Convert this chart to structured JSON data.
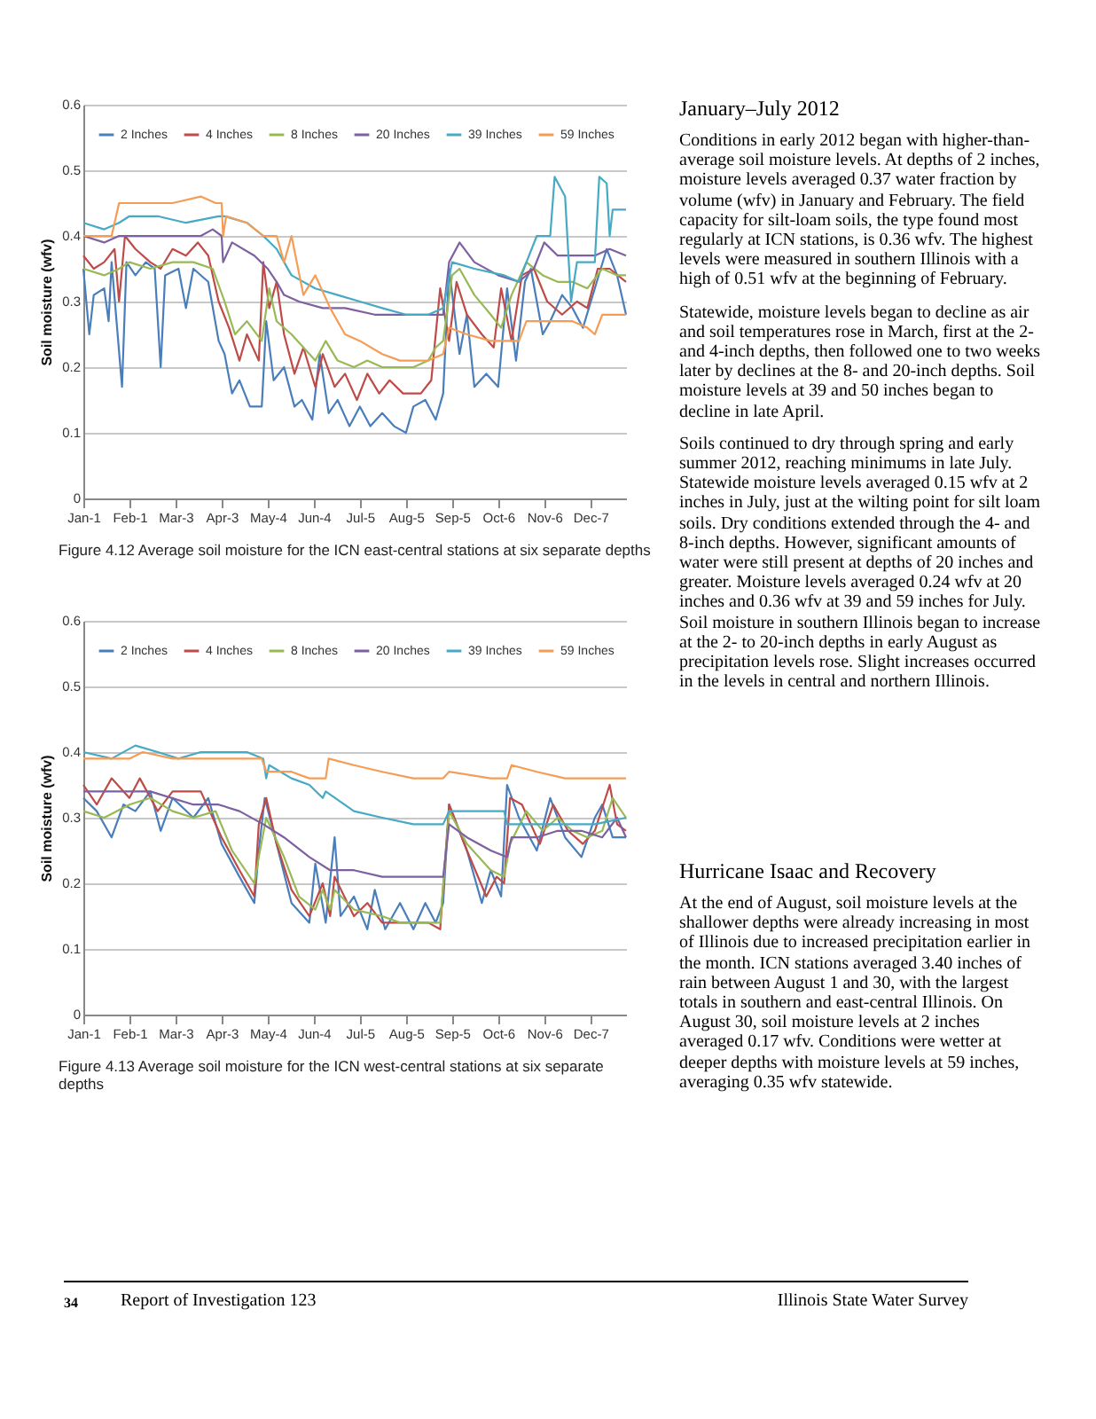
{
  "chart_data": [
    {
      "type": "line",
      "ylabel": "Soil moisture (wfv)",
      "xlim": [
        "--01-01",
        "--12-31"
      ],
      "ylim": [
        0,
        0.6
      ],
      "yticks": [
        0,
        0.1,
        0.2,
        0.3,
        0.4,
        0.5,
        0.6
      ],
      "xticks": [
        {
          "value": "--01-01",
          "label": "Jan-1"
        },
        {
          "value": "--02-01",
          "label": "Feb-1"
        },
        {
          "value": "--03-03",
          "label": "Mar-3"
        },
        {
          "value": "--04-03",
          "label": "Apr-3"
        },
        {
          "value": "--05-04",
          "label": "May-4"
        },
        {
          "value": "--06-04",
          "label": "Jun-4"
        },
        {
          "value": "--07-05",
          "label": "Jul-5"
        },
        {
          "value": "--08-05",
          "label": "Aug-5"
        },
        {
          "value": "--09-05",
          "label": "Sep-5"
        },
        {
          "value": "--10-06",
          "label": "Oct-6"
        },
        {
          "value": "--11-06",
          "label": "Nov-6"
        },
        {
          "value": "--12-07",
          "label": "Dec-7"
        }
      ],
      "grid": "y",
      "legend": "top",
      "line_style": "solid",
      "marker": "none",
      "annotations": [
        "Figure 4.12 Average soil moisture for the ICN east-central stations at six separate depths"
      ],
      "series": [
        {
          "name": "2 Inches",
          "color": "#4a7ebb",
          "x": [
            "--01-01",
            "--01-05",
            "--01-08",
            "--01-15",
            "--01-18",
            "--01-20",
            "--01-27",
            "--01-30",
            "--02-05",
            "--02-12",
            "--02-18",
            "--02-22",
            "--02-25",
            "--03-05",
            "--03-10",
            "--03-15",
            "--03-25",
            "--04-01",
            "--04-05",
            "--04-10",
            "--04-15",
            "--04-22",
            "--04-30",
            "--05-03",
            "--05-08",
            "--05-15",
            "--05-22",
            "--05-27",
            "--06-03",
            "--06-08",
            "--06-14",
            "--06-20",
            "--06-28",
            "--07-05",
            "--07-12",
            "--07-20",
            "--07-28",
            "--08-05",
            "--08-10",
            "--08-18",
            "--08-25",
            "--08-30",
            "--09-03",
            "--09-10",
            "--09-15",
            "--09-20",
            "--09-28",
            "--10-06",
            "--10-12",
            "--10-18",
            "--10-24",
            "--10-28",
            "--11-05",
            "--11-10",
            "--11-18",
            "--11-25",
            "--12-02",
            "--12-10",
            "--12-18",
            "--12-25",
            "--12-31"
          ],
          "values": [
            0.35,
            0.25,
            0.31,
            0.32,
            0.27,
            0.36,
            0.17,
            0.36,
            0.34,
            0.36,
            0.35,
            0.2,
            0.34,
            0.35,
            0.29,
            0.35,
            0.33,
            0.24,
            0.22,
            0.16,
            0.18,
            0.14,
            0.14,
            0.27,
            0.18,
            0.2,
            0.14,
            0.15,
            0.12,
            0.22,
            0.13,
            0.15,
            0.11,
            0.14,
            0.11,
            0.13,
            0.11,
            0.1,
            0.14,
            0.15,
            0.12,
            0.16,
            0.35,
            0.22,
            0.28,
            0.17,
            0.19,
            0.17,
            0.32,
            0.21,
            0.33,
            0.35,
            0.25,
            0.27,
            0.31,
            0.29,
            0.26,
            0.32,
            0.38,
            0.34,
            0.28
          ]
        },
        {
          "name": "4 Inches",
          "color": "#be4b48",
          "x": [
            "--01-01",
            "--01-08",
            "--01-15",
            "--01-22",
            "--01-25",
            "--01-29",
            "--02-05",
            "--02-15",
            "--02-22",
            "--03-01",
            "--03-10",
            "--03-18",
            "--03-25",
            "--04-01",
            "--04-08",
            "--04-15",
            "--04-20",
            "--04-28",
            "--05-01",
            "--05-05",
            "--05-10",
            "--05-15",
            "--05-22",
            "--05-28",
            "--06-05",
            "--06-10",
            "--06-18",
            "--06-25",
            "--07-03",
            "--07-10",
            "--07-18",
            "--07-25",
            "--08-03",
            "--08-15",
            "--08-22",
            "--08-28",
            "--09-03",
            "--09-08",
            "--09-15",
            "--09-25",
            "--10-03",
            "--10-08",
            "--10-15",
            "--10-22",
            "--10-30",
            "--11-08",
            "--11-18",
            "--11-28",
            "--12-05",
            "--12-12",
            "--12-20",
            "--12-31"
          ],
          "values": [
            0.37,
            0.35,
            0.36,
            0.38,
            0.3,
            0.4,
            0.38,
            0.36,
            0.35,
            0.38,
            0.37,
            0.39,
            0.37,
            0.3,
            0.26,
            0.21,
            0.25,
            0.21,
            0.36,
            0.29,
            0.33,
            0.25,
            0.19,
            0.23,
            0.17,
            0.22,
            0.17,
            0.19,
            0.15,
            0.19,
            0.16,
            0.18,
            0.16,
            0.16,
            0.18,
            0.32,
            0.24,
            0.33,
            0.28,
            0.25,
            0.23,
            0.32,
            0.24,
            0.34,
            0.35,
            0.3,
            0.28,
            0.3,
            0.29,
            0.35,
            0.35,
            0.33
          ]
        },
        {
          "name": "8 Inches",
          "color": "#98b954",
          "x": [
            "--01-01",
            "--01-15",
            "--01-25",
            "--02-01",
            "--02-15",
            "--03-01",
            "--03-15",
            "--03-28",
            "--04-05",
            "--04-12",
            "--04-20",
            "--04-30",
            "--05-05",
            "--05-10",
            "--05-20",
            "--05-28",
            "--06-05",
            "--06-12",
            "--06-20",
            "--07-01",
            "--07-10",
            "--07-20",
            "--08-01",
            "--08-10",
            "--08-20",
            "--08-25",
            "--08-30",
            "--09-05",
            "--09-10",
            "--09-20",
            "--10-01",
            "--10-08",
            "--10-15",
            "--10-25",
            "--11-05",
            "--11-15",
            "--11-25",
            "--12-05",
            "--12-15",
            "--12-25",
            "--12-31"
          ],
          "values": [
            0.35,
            0.34,
            0.35,
            0.36,
            0.35,
            0.36,
            0.36,
            0.35,
            0.3,
            0.25,
            0.27,
            0.24,
            0.32,
            0.27,
            0.25,
            0.23,
            0.21,
            0.24,
            0.21,
            0.2,
            0.21,
            0.2,
            0.2,
            0.2,
            0.21,
            0.23,
            0.24,
            0.34,
            0.35,
            0.31,
            0.28,
            0.26,
            0.31,
            0.36,
            0.34,
            0.33,
            0.33,
            0.32,
            0.35,
            0.34,
            0.34
          ]
        },
        {
          "name": "20 Inches",
          "color": "#7d60a0",
          "x": [
            "--01-01",
            "--01-15",
            "--01-25",
            "--02-01",
            "--02-15",
            "--03-01",
            "--03-20",
            "--03-28",
            "--04-03",
            "--04-04",
            "--04-10",
            "--04-25",
            "--05-04",
            "--05-10",
            "--05-15",
            "--05-25",
            "--06-10",
            "--06-25",
            "--07-15",
            "--08-01",
            "--08-20",
            "--08-30",
            "--09-03",
            "--09-10",
            "--09-20",
            "--10-06",
            "--10-20",
            "--10-30",
            "--11-06",
            "--11-15",
            "--11-30",
            "--12-10",
            "--12-20",
            "--12-31"
          ],
          "values": [
            0.4,
            0.39,
            0.4,
            0.4,
            0.4,
            0.4,
            0.4,
            0.41,
            0.4,
            0.36,
            0.39,
            0.37,
            0.35,
            0.33,
            0.31,
            0.3,
            0.29,
            0.29,
            0.28,
            0.28,
            0.28,
            0.28,
            0.36,
            0.39,
            0.36,
            0.34,
            0.33,
            0.35,
            0.39,
            0.37,
            0.37,
            0.37,
            0.38,
            0.37
          ]
        },
        {
          "name": "39 Inches",
          "color": "#46aac5",
          "x": [
            "--01-01",
            "--01-15",
            "--01-25",
            "--02-01",
            "--02-20",
            "--03-10",
            "--04-01",
            "--04-05",
            "--04-20",
            "--05-01",
            "--05-10",
            "--05-20",
            "--06-05",
            "--06-20",
            "--07-05",
            "--07-20",
            "--08-05",
            "--08-20",
            "--08-30",
            "--09-05",
            "--09-20",
            "--10-10",
            "--10-20",
            "--10-25",
            "--11-01",
            "--11-10",
            "--11-13",
            "--11-20",
            "--11-24",
            "--11-28",
            "--12-10",
            "--12-13",
            "--12-18",
            "--12-20",
            "--12-22",
            "--12-31"
          ],
          "values": [
            0.42,
            0.41,
            0.42,
            0.43,
            0.43,
            0.42,
            0.43,
            0.43,
            0.42,
            0.4,
            0.38,
            0.34,
            0.32,
            0.31,
            0.3,
            0.29,
            0.28,
            0.28,
            0.29,
            0.36,
            0.35,
            0.34,
            0.33,
            0.36,
            0.4,
            0.4,
            0.49,
            0.46,
            0.3,
            0.36,
            0.36,
            0.49,
            0.48,
            0.4,
            0.44,
            0.44
          ]
        },
        {
          "name": "59 Inches",
          "color": "#f59d56",
          "x": [
            "--01-01",
            "--01-20",
            "--01-25",
            "--02-10",
            "--03-01",
            "--03-20",
            "--03-30",
            "--04-03",
            "--04-04",
            "--04-06",
            "--04-20",
            "--05-01",
            "--05-10",
            "--05-15",
            "--05-20",
            "--05-28",
            "--06-05",
            "--06-15",
            "--06-25",
            "--07-05",
            "--07-20",
            "--08-01",
            "--08-20",
            "--08-30",
            "--09-03",
            "--09-15",
            "--10-01",
            "--10-20",
            "--10-25",
            "--11-05",
            "--11-25",
            "--12-05",
            "--12-10",
            "--12-15",
            "--12-31"
          ],
          "values": [
            0.4,
            0.4,
            0.45,
            0.45,
            0.45,
            0.46,
            0.45,
            0.45,
            0.4,
            0.43,
            0.42,
            0.4,
            0.4,
            0.36,
            0.4,
            0.31,
            0.34,
            0.29,
            0.25,
            0.24,
            0.22,
            0.21,
            0.21,
            0.22,
            0.26,
            0.25,
            0.24,
            0.24,
            0.27,
            0.27,
            0.27,
            0.26,
            0.25,
            0.28,
            0.28
          ]
        }
      ]
    },
    {
      "type": "line",
      "ylabel": "Soil moisture (wfv)",
      "xlim": [
        "--01-01",
        "--12-31"
      ],
      "ylim": [
        0,
        0.6
      ],
      "yticks": [
        0,
        0.1,
        0.2,
        0.3,
        0.4,
        0.5,
        0.6
      ],
      "xticks": [
        {
          "value": "--01-01",
          "label": "Jan-1"
        },
        {
          "value": "--02-01",
          "label": "Feb-1"
        },
        {
          "value": "--03-03",
          "label": "Mar-3"
        },
        {
          "value": "--04-03",
          "label": "Apr-3"
        },
        {
          "value": "--05-04",
          "label": "May-4"
        },
        {
          "value": "--06-04",
          "label": "Jun-4"
        },
        {
          "value": "--07-05",
          "label": "Jul-5"
        },
        {
          "value": "--08-05",
          "label": "Aug-5"
        },
        {
          "value": "--09-05",
          "label": "Sep-5"
        },
        {
          "value": "--10-06",
          "label": "Oct-6"
        },
        {
          "value": "--11-06",
          "label": "Nov-6"
        },
        {
          "value": "--12-07",
          "label": "Dec-7"
        }
      ],
      "grid": "y",
      "legend": "top",
      "line_style": "solid",
      "marker": "none",
      "annotations": [
        "Figure 4.13 Average soil moisture for the ICN west-central stations at six separate depths"
      ],
      "series": [
        {
          "name": "2 Inches",
          "color": "#4a7ebb",
          "x": [
            "--01-01",
            "--01-10",
            "--01-20",
            "--01-28",
            "--02-05",
            "--02-15",
            "--02-22",
            "--03-01",
            "--03-15",
            "--03-25",
            "--04-03",
            "--04-15",
            "--04-25",
            "--04-28",
            "--05-02",
            "--05-10",
            "--05-20",
            "--06-01",
            "--06-05",
            "--06-12",
            "--06-18",
            "--06-22",
            "--07-01",
            "--07-10",
            "--07-15",
            "--07-22",
            "--08-01",
            "--08-10",
            "--08-18",
            "--08-25",
            "--08-30",
            "--09-03",
            "--09-15",
            "--09-25",
            "--10-01",
            "--10-08",
            "--10-12",
            "--10-20",
            "--11-01",
            "--11-10",
            "--11-20",
            "--12-01",
            "--12-10",
            "--12-15",
            "--12-22",
            "--12-31"
          ],
          "values": [
            0.33,
            0.31,
            0.27,
            0.32,
            0.31,
            0.34,
            0.28,
            0.33,
            0.3,
            0.33,
            0.26,
            0.21,
            0.17,
            0.25,
            0.33,
            0.26,
            0.17,
            0.14,
            0.23,
            0.14,
            0.27,
            0.15,
            0.18,
            0.13,
            0.19,
            0.13,
            0.17,
            0.13,
            0.17,
            0.14,
            0.17,
            0.32,
            0.25,
            0.17,
            0.22,
            0.18,
            0.35,
            0.3,
            0.25,
            0.33,
            0.27,
            0.24,
            0.3,
            0.32,
            0.27,
            0.27
          ]
        },
        {
          "name": "4 Inches",
          "color": "#be4b48",
          "x": [
            "--01-01",
            "--01-10",
            "--01-20",
            "--02-01",
            "--02-08",
            "--02-20",
            "--03-01",
            "--03-20",
            "--04-03",
            "--04-15",
            "--04-25",
            "--04-28",
            "--05-03",
            "--05-10",
            "--05-20",
            "--06-01",
            "--06-10",
            "--06-15",
            "--06-18",
            "--07-01",
            "--07-10",
            "--07-20",
            "--08-01",
            "--08-20",
            "--08-28",
            "--09-03",
            "--09-15",
            "--09-28",
            "--10-05",
            "--10-10",
            "--10-14",
            "--10-22",
            "--11-03",
            "--11-12",
            "--11-22",
            "--12-02",
            "--12-10",
            "--12-20",
            "--12-25",
            "--12-31"
          ],
          "values": [
            0.35,
            0.32,
            0.36,
            0.33,
            0.36,
            0.31,
            0.34,
            0.34,
            0.27,
            0.22,
            0.18,
            0.29,
            0.33,
            0.26,
            0.19,
            0.15,
            0.2,
            0.15,
            0.21,
            0.15,
            0.17,
            0.14,
            0.14,
            0.14,
            0.13,
            0.32,
            0.25,
            0.18,
            0.21,
            0.2,
            0.33,
            0.32,
            0.26,
            0.32,
            0.28,
            0.26,
            0.28,
            0.35,
            0.29,
            0.28
          ]
        },
        {
          "name": "8 Inches",
          "color": "#98b954",
          "x": [
            "--01-01",
            "--01-15",
            "--02-01",
            "--02-15",
            "--03-01",
            "--03-15",
            "--03-30",
            "--04-10",
            "--04-25",
            "--04-28",
            "--05-03",
            "--05-15",
            "--05-25",
            "--06-05",
            "--06-10",
            "--06-15",
            "--06-18",
            "--07-01",
            "--07-20",
            "--08-01",
            "--08-28",
            "--09-03",
            "--09-15",
            "--10-01",
            "--10-10",
            "--10-14",
            "--10-25",
            "--11-05",
            "--11-15",
            "--11-25",
            "--12-05",
            "--12-15",
            "--12-22",
            "--12-31"
          ],
          "values": [
            0.31,
            0.3,
            0.32,
            0.33,
            0.31,
            0.3,
            0.31,
            0.25,
            0.2,
            0.24,
            0.3,
            0.24,
            0.18,
            0.16,
            0.19,
            0.16,
            0.19,
            0.16,
            0.15,
            0.14,
            0.14,
            0.31,
            0.26,
            0.22,
            0.21,
            0.26,
            0.31,
            0.28,
            0.3,
            0.28,
            0.27,
            0.28,
            0.33,
            0.3
          ]
        },
        {
          "name": "20 Inches",
          "color": "#7d60a0",
          "x": [
            "--01-01",
            "--02-01",
            "--02-15",
            "--03-15",
            "--04-01",
            "--04-15",
            "--05-01",
            "--05-15",
            "--06-01",
            "--06-15",
            "--07-01",
            "--07-20",
            "--08-10",
            "--08-30",
            "--09-03",
            "--09-15",
            "--10-01",
            "--10-12",
            "--10-15",
            "--11-01",
            "--11-15",
            "--12-01",
            "--12-15",
            "--12-25",
            "--12-31"
          ],
          "values": [
            0.34,
            0.34,
            0.34,
            0.32,
            0.32,
            0.31,
            0.29,
            0.27,
            0.24,
            0.22,
            0.22,
            0.21,
            0.21,
            0.21,
            0.29,
            0.27,
            0.25,
            0.24,
            0.27,
            0.27,
            0.28,
            0.28,
            0.27,
            0.3,
            0.27
          ]
        },
        {
          "name": "39 Inches",
          "color": "#46aac5",
          "x": [
            "--01-01",
            "--01-20",
            "--02-05",
            "--02-20",
            "--03-05",
            "--03-20",
            "--04-01",
            "--04-20",
            "--05-01",
            "--05-03",
            "--05-05",
            "--05-20",
            "--06-01",
            "--06-10",
            "--06-12",
            "--07-01",
            "--07-20",
            "--08-10",
            "--08-30",
            "--09-03",
            "--09-20",
            "--10-10",
            "--10-12",
            "--11-01",
            "--11-20",
            "--12-10",
            "--12-31"
          ],
          "values": [
            0.4,
            0.39,
            0.41,
            0.4,
            0.39,
            0.4,
            0.4,
            0.4,
            0.39,
            0.36,
            0.38,
            0.36,
            0.35,
            0.33,
            0.34,
            0.31,
            0.3,
            0.29,
            0.29,
            0.31,
            0.31,
            0.31,
            0.29,
            0.29,
            0.29,
            0.29,
            0.3
          ]
        },
        {
          "name": "59 Inches",
          "color": "#f59d56",
          "x": [
            "--01-01",
            "--02-01",
            "--02-10",
            "--03-01",
            "--03-15",
            "--04-01",
            "--04-30",
            "--05-03",
            "--05-20",
            "--06-01",
            "--06-12",
            "--06-14",
            "--07-01",
            "--07-20",
            "--08-10",
            "--08-30",
            "--09-03",
            "--10-01",
            "--10-12",
            "--10-15",
            "--11-01",
            "--11-20",
            "--12-10",
            "--12-25",
            "--12-31"
          ],
          "values": [
            0.39,
            0.39,
            0.4,
            0.39,
            0.39,
            0.39,
            0.39,
            0.37,
            0.37,
            0.36,
            0.36,
            0.39,
            0.38,
            0.37,
            0.36,
            0.36,
            0.37,
            0.36,
            0.36,
            0.38,
            0.37,
            0.36,
            0.36,
            0.36,
            0.36
          ]
        }
      ]
    },
    {
      "type": "other",
      "title": "January–July 2012",
      "annotations": [
        "Conditions in early 2012 began with higher-than-average soil moisture levels. At depths of 2 inches, moisture levels averaged 0.37 water fraction by volume (wfv) in January and February. The field capacity for silt-loam soils, the type found most regularly at ICN stations, is 0.36 wfv. The highest levels were measured in southern Illinois with a high of 0.51 wfv at the beginning of February.",
        "Statewide, moisture levels began to decline as air and soil temperatures rose in March, first at the 2- and 4-inch depths, then followed one to two weeks later by declines at the 8- and 20-inch depths. Soil moisture levels at 39 and 50 inches began to decline in late April.",
        "Soils continued to dry through spring and early summer 2012, reaching minimums in late July. Statewide moisture levels averaged 0.15 wfv at 2 inches in July, just at the wilting point for silt loam soils. Dry conditions extended through the 4- and 8-inch depths. However, significant amounts of water were still present at depths of 20 inches and greater. Moisture levels averaged 0.24 wfv at 20 inches and 0.36 wfv at 39 and 59 inches for July. Soil moisture in southern Illinois began to increase at the 2- to 20-inch depths in early August as precipitation levels rose. Slight increases occurred in the levels in central and northern Illinois."
      ]
    },
    {
      "type": "other",
      "title": "Hurricane Isaac and Recovery",
      "annotations": [
        "At the end of August, soil moisture levels at the shallower depths were already increasing in most of Illinois due to increased precipitation earlier in the month. ICN stations averaged 3.40 inches of rain between August 1 and 30, with the largest totals in southern and east-central Illinois. On August 30, soil moisture levels at 2 inches averaged 0.17 wfv. Conditions were wetter at deeper depths with moisture levels at 59 inches, averaging 0.35 wfv statewide."
      ]
    },
    {
      "type": "other",
      "annotations": [
        "34",
        "Report of Investigation 123",
        "Illinois State Water Survey"
      ]
    }
  ]
}
